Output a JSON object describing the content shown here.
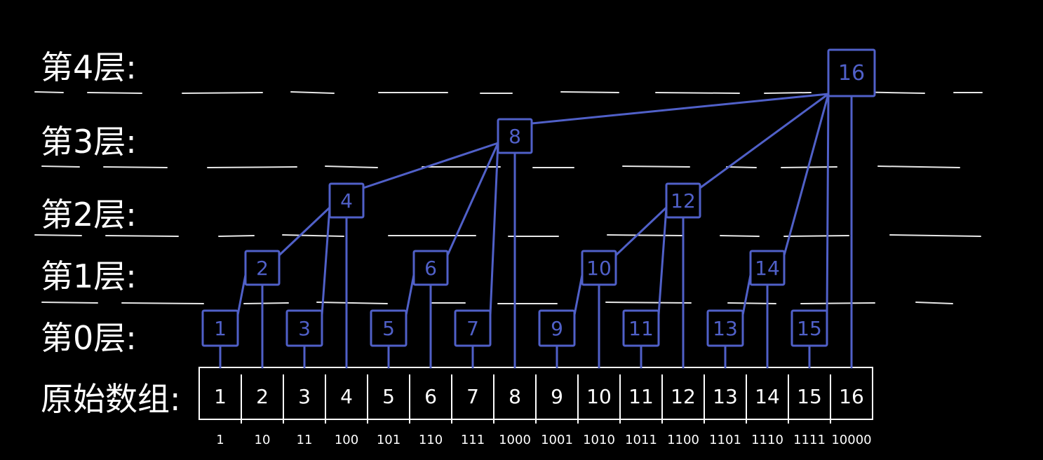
{
  "level_labels": [
    "第4层:",
    "第3层:",
    "第2层:",
    "第1层:",
    "第0层:"
  ],
  "array_label": "原始数组:",
  "array_values": [
    "1",
    "2",
    "3",
    "4",
    "5",
    "6",
    "7",
    "8",
    "9",
    "10",
    "11",
    "12",
    "13",
    "14",
    "15",
    "16"
  ],
  "binary_indices": [
    "1",
    "10",
    "11",
    "100",
    "101",
    "110",
    "111",
    "1000",
    "1001",
    "1010",
    "1011",
    "1100",
    "1101",
    "1110",
    "1111",
    "10000"
  ],
  "tree_nodes": [
    {
      "label": "1",
      "level": 0,
      "index": 1
    },
    {
      "label": "3",
      "level": 0,
      "index": 3
    },
    {
      "label": "5",
      "level": 0,
      "index": 5
    },
    {
      "label": "7",
      "level": 0,
      "index": 7
    },
    {
      "label": "9",
      "level": 0,
      "index": 9
    },
    {
      "label": "11",
      "level": 0,
      "index": 11
    },
    {
      "label": "13",
      "level": 0,
      "index": 13
    },
    {
      "label": "15",
      "level": 0,
      "index": 15
    },
    {
      "label": "2",
      "level": 1,
      "index": 2
    },
    {
      "label": "6",
      "level": 1,
      "index": 6
    },
    {
      "label": "10",
      "level": 1,
      "index": 10
    },
    {
      "label": "14",
      "level": 1,
      "index": 14
    },
    {
      "label": "4",
      "level": 2,
      "index": 4
    },
    {
      "label": "12",
      "level": 2,
      "index": 12
    },
    {
      "label": "8",
      "level": 3,
      "index": 8
    },
    {
      "label": "16",
      "level": 4,
      "index": 16
    }
  ],
  "colors": {
    "background": "#000000",
    "chalk": "#ffffff",
    "ink": "#5060c8"
  }
}
